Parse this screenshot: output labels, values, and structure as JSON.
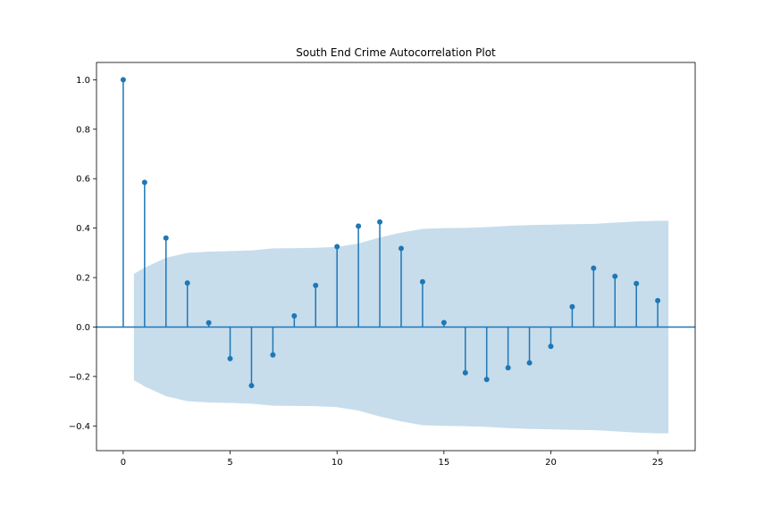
{
  "chart_data": {
    "type": "stem",
    "title": "South End Crime Autocorrelation Plot",
    "xlabel": "",
    "ylabel": "",
    "xlim": [
      -1.25,
      26.75
    ],
    "ylim": [
      -0.5,
      1.07
    ],
    "xticks": [
      0,
      5,
      10,
      15,
      20,
      25
    ],
    "yticks": [
      -0.4,
      -0.2,
      0.0,
      0.2,
      0.4,
      0.6,
      0.8,
      1.0
    ],
    "ytick_labels": [
      "−0.4",
      "−0.2",
      "0.0",
      "0.2",
      "0.4",
      "0.6",
      "0.8",
      "1.0"
    ],
    "lags": [
      0,
      1,
      2,
      3,
      4,
      5,
      6,
      7,
      8,
      9,
      10,
      11,
      12,
      13,
      14,
      15,
      16,
      17,
      18,
      19,
      20,
      21,
      22,
      23,
      24,
      25
    ],
    "acf": [
      1.0,
      0.585,
      0.36,
      0.178,
      0.017,
      -0.128,
      -0.237,
      -0.113,
      0.045,
      0.168,
      0.325,
      0.408,
      0.425,
      0.318,
      0.183,
      0.018,
      -0.185,
      -0.212,
      -0.165,
      -0.145,
      -0.078,
      0.082,
      0.238,
      0.205,
      0.176,
      0.107
    ],
    "confidence_band": {
      "x": [
        0.5,
        1,
        2,
        3,
        4,
        5,
        6,
        7,
        8,
        9,
        10,
        11,
        12,
        13,
        14,
        15,
        16,
        17,
        18,
        19,
        20,
        21,
        22,
        23,
        24,
        25,
        25.5
      ],
      "upper": [
        0.215,
        0.24,
        0.28,
        0.3,
        0.305,
        0.307,
        0.31,
        0.318,
        0.319,
        0.32,
        0.324,
        0.338,
        0.362,
        0.382,
        0.397,
        0.4,
        0.401,
        0.404,
        0.409,
        0.412,
        0.414,
        0.416,
        0.417,
        0.422,
        0.427,
        0.43,
        0.43
      ]
    },
    "colors": {
      "stem": "#1f77b4",
      "band": "#1f77b4",
      "zero_line": "#1f77b4"
    },
    "grid": false,
    "legend": "none"
  }
}
